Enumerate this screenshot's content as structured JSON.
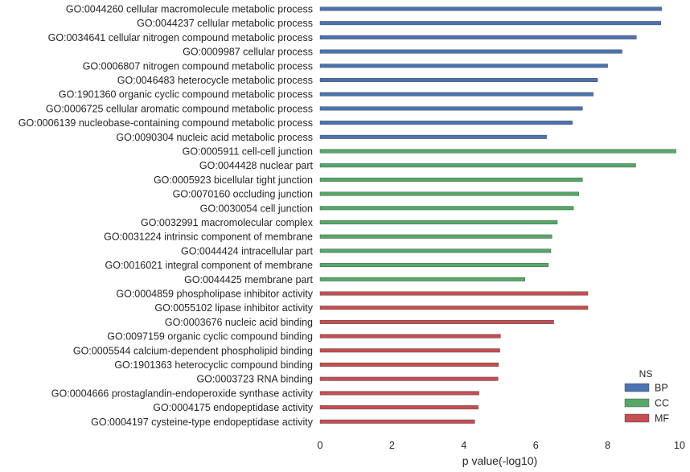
{
  "chart_data": {
    "type": "bar",
    "orientation": "horizontal",
    "xlabel": "p value(-log10)",
    "xlim": [
      0,
      10
    ],
    "xticks": [
      "0",
      "2",
      "4",
      "6",
      "8",
      "10"
    ],
    "grid": false,
    "legend": {
      "title": "NS",
      "placement": "bottom-right",
      "entries": [
        {
          "name": "BP",
          "color": "#4c72b0"
        },
        {
          "name": "CC",
          "color": "#55a868"
        },
        {
          "name": "MF",
          "color": "#c44e52"
        }
      ]
    },
    "categories": [
      {
        "label": "GO:0044260 cellular macromolecule metabolic process",
        "value": 9.5,
        "ns": "BP"
      },
      {
        "label": "GO:0044237 cellular metabolic process",
        "value": 9.48,
        "ns": "BP"
      },
      {
        "label": "GO:0034641 cellular nitrogen compound metabolic process",
        "value": 8.8,
        "ns": "BP"
      },
      {
        "label": "GO:0009987 cellular process",
        "value": 8.4,
        "ns": "BP"
      },
      {
        "label": "GO:0006807 nitrogen compound metabolic process",
        "value": 8.0,
        "ns": "BP"
      },
      {
        "label": "GO:0046483 heterocycle metabolic process",
        "value": 7.72,
        "ns": "BP"
      },
      {
        "label": "GO:1901360 organic cyclic compound metabolic process",
        "value": 7.6,
        "ns": "BP"
      },
      {
        "label": "GO:0006725 cellular aromatic compound metabolic process",
        "value": 7.3,
        "ns": "BP"
      },
      {
        "label": "GO:0006139 nucleobase-containing compound metabolic process",
        "value": 7.02,
        "ns": "BP"
      },
      {
        "label": "GO:0090304 nucleic acid metabolic process",
        "value": 6.3,
        "ns": "BP"
      },
      {
        "label": "GO:0005911 cell-cell junction",
        "value": 9.9,
        "ns": "CC"
      },
      {
        "label": "GO:0044428 nuclear part",
        "value": 8.78,
        "ns": "CC"
      },
      {
        "label": "GO:0005923 bicellular tight junction",
        "value": 7.3,
        "ns": "CC"
      },
      {
        "label": "GO:0070160 occluding junction",
        "value": 7.2,
        "ns": "CC"
      },
      {
        "label": "GO:0030054 cell junction",
        "value": 7.05,
        "ns": "CC"
      },
      {
        "label": "GO:0032991 macromolecular complex",
        "value": 6.6,
        "ns": "CC"
      },
      {
        "label": "GO:0031224 intrinsic component of membrane",
        "value": 6.45,
        "ns": "CC"
      },
      {
        "label": "GO:0044424 intracellular part",
        "value": 6.42,
        "ns": "CC"
      },
      {
        "label": "GO:0016021 integral component of membrane",
        "value": 6.35,
        "ns": "CC"
      },
      {
        "label": "GO:0044425 membrane part",
        "value": 5.7,
        "ns": "CC"
      },
      {
        "label": "GO:0004859 phospholipase inhibitor activity",
        "value": 7.45,
        "ns": "MF"
      },
      {
        "label": "GO:0055102 lipase inhibitor activity",
        "value": 7.45,
        "ns": "MF"
      },
      {
        "label": "GO:0003676 nucleic acid binding",
        "value": 6.5,
        "ns": "MF"
      },
      {
        "label": "GO:0097159 organic cyclic compound binding",
        "value": 5.02,
        "ns": "MF"
      },
      {
        "label": "GO:0005544 calcium-dependent phospholipid binding",
        "value": 5.0,
        "ns": "MF"
      },
      {
        "label": "GO:1901363 heterocyclic compound binding",
        "value": 4.96,
        "ns": "MF"
      },
      {
        "label": "GO:0003723 RNA binding",
        "value": 4.95,
        "ns": "MF"
      },
      {
        "label": "GO:0004666 prostaglandin-endoperoxide synthase activity",
        "value": 4.42,
        "ns": "MF"
      },
      {
        "label": "GO:0004175 endopeptidase activity",
        "value": 4.4,
        "ns": "MF"
      },
      {
        "label": "GO:0004197 cysteine-type endopeptidase activity",
        "value": 4.3,
        "ns": "MF"
      }
    ]
  }
}
